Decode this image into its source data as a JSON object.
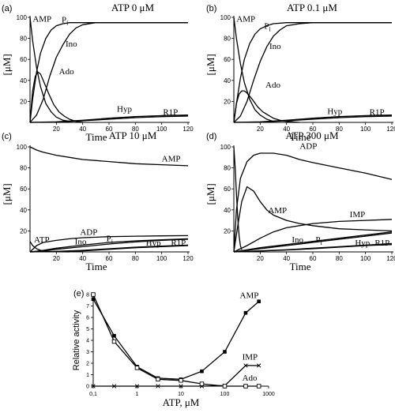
{
  "chart_data": [
    {
      "type": "line",
      "panel_label": "(a)",
      "title": "ATP 0 μM",
      "xlabel": "Time",
      "ylabel": "[μM]",
      "xlim": [
        0,
        120
      ],
      "ylim": [
        0,
        100
      ],
      "xticks": [
        20,
        40,
        60,
        80,
        100,
        120
      ],
      "yticks": [
        20,
        40,
        60,
        80,
        100
      ],
      "series": [
        {
          "name": "AMP",
          "x": [
            0,
            2,
            5,
            8,
            12,
            16,
            20,
            25,
            30
          ],
          "y": [
            100,
            78,
            52,
            34,
            18,
            10,
            5,
            2,
            1
          ]
        },
        {
          "name": "Pi",
          "x": [
            0,
            2,
            5,
            8,
            12,
            16,
            20,
            25,
            30,
            40,
            50,
            60,
            80,
            100,
            120
          ],
          "y": [
            0,
            22,
            48,
            66,
            80,
            88,
            92,
            94,
            95,
            95,
            95,
            95,
            95,
            95,
            95
          ]
        },
        {
          "name": "Ino",
          "x": [
            0,
            5,
            10,
            15,
            20,
            25,
            30,
            35,
            40,
            50,
            60,
            80,
            100,
            120
          ],
          "y": [
            0,
            7,
            22,
            44,
            62,
            74,
            84,
            90,
            93,
            95,
            95,
            95,
            95,
            95
          ]
        },
        {
          "name": "Ado",
          "x": [
            0,
            2,
            4,
            6,
            8,
            10,
            14,
            18,
            22,
            26,
            30,
            35,
            40
          ],
          "y": [
            0,
            30,
            44,
            48,
            46,
            40,
            28,
            17,
            10,
            6,
            3,
            1,
            0
          ]
        },
        {
          "name": "Hyp",
          "x": [
            0,
            20,
            40,
            60,
            80,
            100,
            120
          ],
          "y": [
            0,
            0.5,
            2,
            4,
            5.5,
            6.5,
            7
          ]
        },
        {
          "name": "R1P",
          "x": [
            0,
            20,
            40,
            60,
            80,
            100,
            120
          ],
          "y": [
            0,
            0.3,
            1.5,
            3,
            4.5,
            5.5,
            6
          ]
        }
      ],
      "annotations": [
        "AMP",
        "Pi",
        "Ino",
        "Ado",
        "Hyp",
        "R1P"
      ]
    },
    {
      "type": "line",
      "panel_label": "(b)",
      "title": "ATP 0.1 μM",
      "xlabel": "Time",
      "ylabel": "[μM]",
      "xlim": [
        0,
        120
      ],
      "ylim": [
        0,
        100
      ],
      "xticks": [
        20,
        40,
        60,
        80,
        100,
        120
      ],
      "yticks": [
        20,
        40,
        60,
        80,
        100
      ],
      "series": [
        {
          "name": "AMP",
          "x": [
            0,
            2,
            5,
            8,
            12,
            16,
            20,
            25,
            30
          ],
          "y": [
            100,
            80,
            56,
            38,
            22,
            12,
            7,
            3,
            1
          ]
        },
        {
          "name": "Pi",
          "x": [
            0,
            2,
            5,
            8,
            12,
            16,
            20,
            25,
            30,
            40,
            50,
            60,
            80,
            100,
            120
          ],
          "y": [
            0,
            18,
            42,
            60,
            75,
            84,
            89,
            92,
            94,
            95,
            95,
            95,
            95,
            95,
            95
          ]
        },
        {
          "name": "Ino",
          "x": [
            0,
            5,
            10,
            15,
            20,
            25,
            30,
            35,
            40,
            50,
            60,
            80,
            100,
            120
          ],
          "y": [
            0,
            6,
            20,
            40,
            58,
            72,
            82,
            88,
            92,
            94,
            95,
            95,
            95,
            95
          ]
        },
        {
          "name": "Ado",
          "x": [
            0,
            2,
            4,
            6,
            8,
            10,
            14,
            18,
            22,
            26,
            30,
            35,
            40,
            50
          ],
          "y": [
            0,
            18,
            27,
            30,
            30,
            28,
            22,
            15,
            10,
            7,
            4,
            2,
            1,
            0
          ]
        },
        {
          "name": "Hyp",
          "x": [
            0,
            20,
            40,
            60,
            80,
            100,
            120
          ],
          "y": [
            0,
            0.5,
            2,
            4,
            5.5,
            6.5,
            7
          ]
        },
        {
          "name": "R1P",
          "x": [
            0,
            20,
            40,
            60,
            80,
            100,
            120
          ],
          "y": [
            0,
            0.3,
            1.5,
            3,
            4.5,
            5.5,
            6
          ]
        }
      ],
      "annotations": [
        "AMP",
        "Pi",
        "Ino",
        "Ado",
        "Hyp",
        "R1P"
      ]
    },
    {
      "type": "line",
      "panel_label": "(c)",
      "title": "ATP 10 μM",
      "xlabel": "Time",
      "ylabel": "[μM]",
      "xlim": [
        0,
        120
      ],
      "ylim": [
        0,
        100
      ],
      "xticks": [
        20,
        40,
        60,
        80,
        100,
        120
      ],
      "yticks": [
        20,
        40,
        60,
        80,
        100
      ],
      "series": [
        {
          "name": "AMP",
          "x": [
            0,
            5,
            10,
            20,
            30,
            40,
            60,
            80,
            100,
            120
          ],
          "y": [
            100,
            97,
            95,
            92,
            90,
            88,
            86,
            84,
            83,
            82
          ]
        },
        {
          "name": "ATP",
          "x": [
            0,
            2,
            5,
            8,
            12,
            16,
            20,
            30
          ],
          "y": [
            10,
            6,
            3,
            1.5,
            0.7,
            0.3,
            0.1,
            0
          ]
        },
        {
          "name": "ADP",
          "x": [
            0,
            5,
            10,
            20,
            30,
            40,
            50,
            60,
            80,
            100,
            120
          ],
          "y": [
            0,
            6,
            9,
            11,
            12.5,
            13.5,
            14,
            14.5,
            15,
            15.3,
            15.5
          ]
        },
        {
          "name": "Ino",
          "x": [
            0,
            10,
            20,
            40,
            60,
            80,
            100,
            120
          ],
          "y": [
            0,
            1,
            2.5,
            5,
            7.5,
            9.5,
            11,
            12
          ]
        },
        {
          "name": "Pi",
          "x": [
            0,
            10,
            20,
            40,
            60,
            80,
            100,
            120
          ],
          "y": [
            0,
            1.5,
            3.5,
            6.5,
            9,
            10.5,
            11.5,
            12.5
          ]
        },
        {
          "name": "Hyp",
          "x": [
            0,
            20,
            40,
            60,
            80,
            100,
            120
          ],
          "y": [
            0,
            0.5,
            1.5,
            3,
            4.5,
            5.5,
            6.5
          ]
        },
        {
          "name": "R1P",
          "x": [
            0,
            20,
            40,
            60,
            80,
            100,
            120
          ],
          "y": [
            0,
            0.3,
            1,
            2.5,
            4,
            5,
            6
          ]
        }
      ],
      "annotations": [
        "AMP",
        "ATP",
        "ADP",
        "Ino",
        "Pi",
        "Hyp",
        "R1P"
      ]
    },
    {
      "type": "line",
      "panel_label": "(d)",
      "title": "ATP 300 μM",
      "xlabel": "Time",
      "ylabel": "[μM]",
      "xlim": [
        0,
        120
      ],
      "ylim": [
        0,
        100
      ],
      "xticks": [
        20,
        40,
        60,
        80,
        100,
        120
      ],
      "yticks": [
        20,
        40,
        60,
        80,
        100
      ],
      "series": [
        {
          "name": "ATP",
          "x": [
            0,
            1,
            2,
            3,
            4,
            5,
            6
          ],
          "y": [
            100,
            80,
            55,
            32,
            15,
            6,
            2
          ]
        },
        {
          "name": "ADP",
          "x": [
            0,
            2,
            5,
            10,
            15,
            20,
            30,
            40,
            50,
            60,
            80,
            100,
            120
          ],
          "y": [
            0,
            40,
            70,
            86,
            92,
            94,
            94,
            92,
            88,
            85,
            80,
            75,
            69
          ]
        },
        {
          "name": "AMP",
          "x": [
            0,
            3,
            6,
            10,
            15,
            20,
            25,
            30,
            40,
            50,
            60,
            80,
            100,
            120
          ],
          "y": [
            0,
            25,
            48,
            62,
            58,
            48,
            40,
            35,
            30,
            27,
            25,
            22,
            21,
            20
          ]
        },
        {
          "name": "IMP",
          "x": [
            0,
            10,
            20,
            30,
            40,
            60,
            80,
            100,
            120
          ],
          "y": [
            0,
            6,
            13,
            19,
            23,
            27,
            29,
            30,
            31
          ]
        },
        {
          "name": "Ino",
          "x": [
            0,
            20,
            40,
            60,
            80,
            100,
            120
          ],
          "y": [
            0,
            4,
            7,
            10,
            13,
            16,
            19
          ]
        },
        {
          "name": "Pi",
          "x": [
            0,
            20,
            40,
            60,
            80,
            100,
            120
          ],
          "y": [
            0,
            3,
            6,
            9,
            12,
            15,
            18
          ]
        },
        {
          "name": "Hyp",
          "x": [
            0,
            20,
            40,
            60,
            80,
            100,
            120
          ],
          "y": [
            0,
            1,
            2,
            3.5,
            5,
            6.5,
            8
          ]
        },
        {
          "name": "R1P",
          "x": [
            0,
            20,
            40,
            60,
            80,
            100,
            120
          ],
          "y": [
            0,
            0.8,
            1.8,
            3,
            4.5,
            6,
            7
          ]
        }
      ],
      "annotations": [
        "ADP",
        "AMP",
        "IMP",
        "Ino",
        "Pi",
        "Hyp",
        "R1P"
      ]
    },
    {
      "type": "line",
      "panel_label": "(e)",
      "title": "",
      "xlabel": "ATP, μM",
      "ylabel": "Relative activity",
      "xscale": "log",
      "xlim": [
        0.1,
        1000
      ],
      "ylim": [
        0,
        8
      ],
      "xticks": [
        "0,1",
        "1",
        "10",
        "100",
        "1000"
      ],
      "yticks": [
        0,
        1,
        2,
        3,
        4,
        5,
        6,
        7,
        8
      ],
      "series": [
        {
          "name": "AMP",
          "marker": "filled-square",
          "x": [
            0.1,
            0.3,
            1,
            3,
            10,
            30,
            100,
            300,
            600
          ],
          "y": [
            7.6,
            4.4,
            1.7,
            0.7,
            0.6,
            1.3,
            3.0,
            6.4,
            7.4
          ]
        },
        {
          "name": "IMP",
          "marker": "cross",
          "x": [
            0.1,
            0.3,
            1,
            3,
            10,
            30,
            100,
            300,
            600
          ],
          "y": [
            0,
            0,
            0,
            0,
            0,
            0,
            0.05,
            1.8,
            1.8
          ]
        },
        {
          "name": "Ado",
          "marker": "open-square",
          "x": [
            0.1,
            0.3,
            1,
            3,
            10,
            30,
            100,
            300,
            600
          ],
          "y": [
            8.0,
            3.9,
            1.6,
            0.6,
            0.5,
            0.2,
            0,
            0,
            0
          ]
        }
      ],
      "annotations": [
        "AMP",
        "IMP",
        "Ado"
      ]
    }
  ]
}
